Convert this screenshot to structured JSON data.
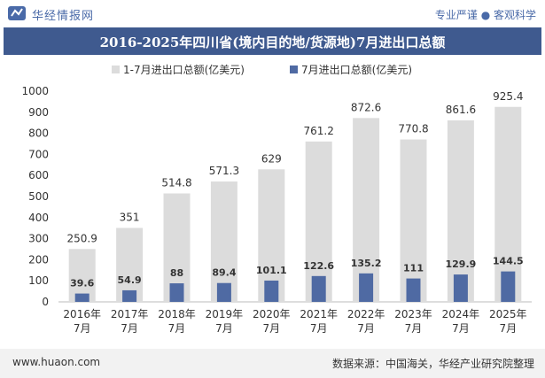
{
  "brand": {
    "name": "华经情报网",
    "slogan": "专业严谨 ● 客观科学"
  },
  "footer": {
    "url": "www.huaon.com",
    "source": "数据来源：中国海关，华经产业研究院整理"
  },
  "colors": {
    "series1": "#dcdcdc",
    "series2": "#4f6aa3",
    "titlebar": "#3f5a8f",
    "axis_text": "#333333"
  },
  "chart_data": {
    "type": "bar",
    "title": "2016-2025年四川省(境内目的地/货源地)7月进出口总额",
    "categories": [
      "2016年\n7月",
      "2017年\n7月",
      "2018年\n7月",
      "2019年\n7月",
      "2020年\n7月",
      "2021年\n7月",
      "2022年\n7月",
      "2023年\n7月",
      "2024年\n7月",
      "2025年\n7月"
    ],
    "series": [
      {
        "name": "1-7月进出口总额(亿美元)",
        "values": [
          250.9,
          351,
          514.8,
          571.3,
          629,
          761.2,
          872.6,
          770.8,
          861.6,
          925.4
        ]
      },
      {
        "name": "7月进出口总额(亿美元)",
        "values": [
          39.6,
          54.9,
          88,
          89.4,
          101.1,
          122.6,
          135.2,
          111,
          129.9,
          144.5
        ]
      }
    ],
    "series_labels": [
      [
        "250.9",
        "351",
        "514.8",
        "571.3",
        "629",
        "761.2",
        "872.6",
        "770.8",
        "861.6",
        "925.4"
      ],
      [
        "39.6",
        "54.9",
        "88",
        "89.4",
        "101.1",
        "122.6",
        "135.2",
        "111",
        "129.9",
        "144.5"
      ]
    ],
    "ylim": [
      0,
      1000
    ],
    "yticks": [
      "0",
      "100",
      "200",
      "300",
      "400",
      "500",
      "600",
      "700",
      "800",
      "900",
      "1000"
    ],
    "legend_position": "top",
    "grid": false
  }
}
